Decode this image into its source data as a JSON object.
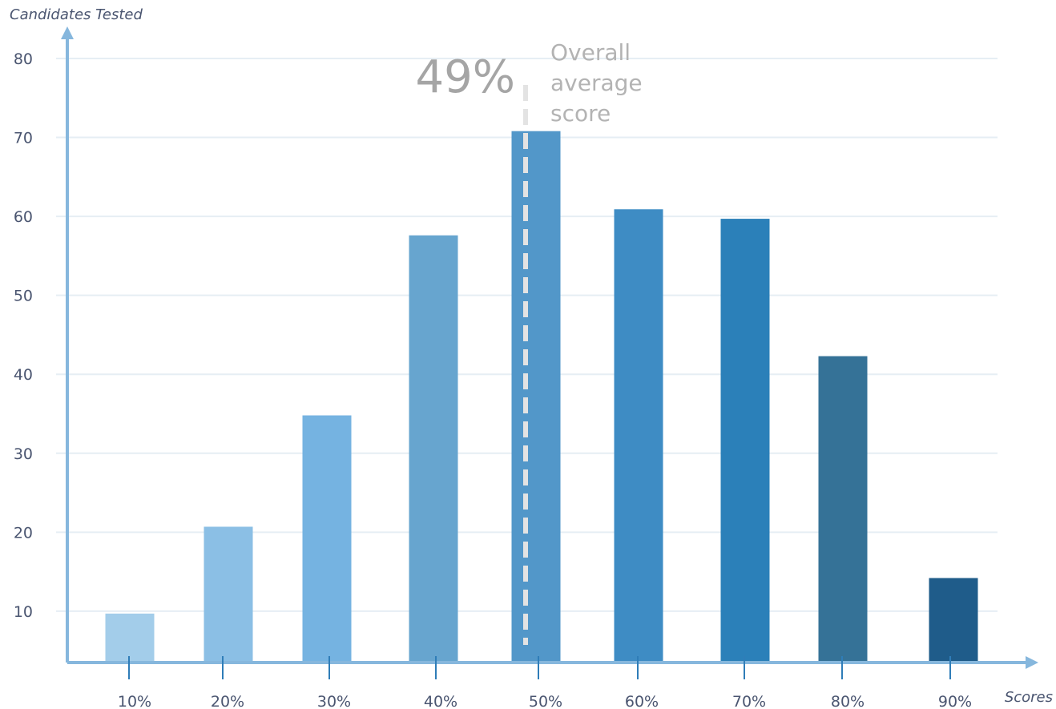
{
  "chart_data": {
    "type": "bar",
    "ylabel": "Candidates Tested",
    "xlabel": "Scores",
    "categories": [
      "10%",
      "20%",
      "30%",
      "40%",
      "50%",
      "60%",
      "70%",
      "80%",
      "90%"
    ],
    "values": [
      9.7,
      20.7,
      34.8,
      57.6,
      70.8,
      60.9,
      59.7,
      42.3,
      14.2
    ],
    "ylim": [
      3.5,
      80
    ],
    "yticks": [
      10,
      20,
      30,
      40,
      50,
      60,
      70,
      80
    ],
    "grid": true,
    "bar_colors": [
      "#a3cdea",
      "#8bbfe5",
      "#75b3e1",
      "#67a5cf",
      "#5297c9",
      "#3e8cc4",
      "#2b80b9",
      "#357297",
      "#1f5c8a"
    ],
    "annotation": {
      "value_label": "49%",
      "text_lines": [
        "Overall",
        "average",
        "score"
      ],
      "x_value": 49
    }
  }
}
